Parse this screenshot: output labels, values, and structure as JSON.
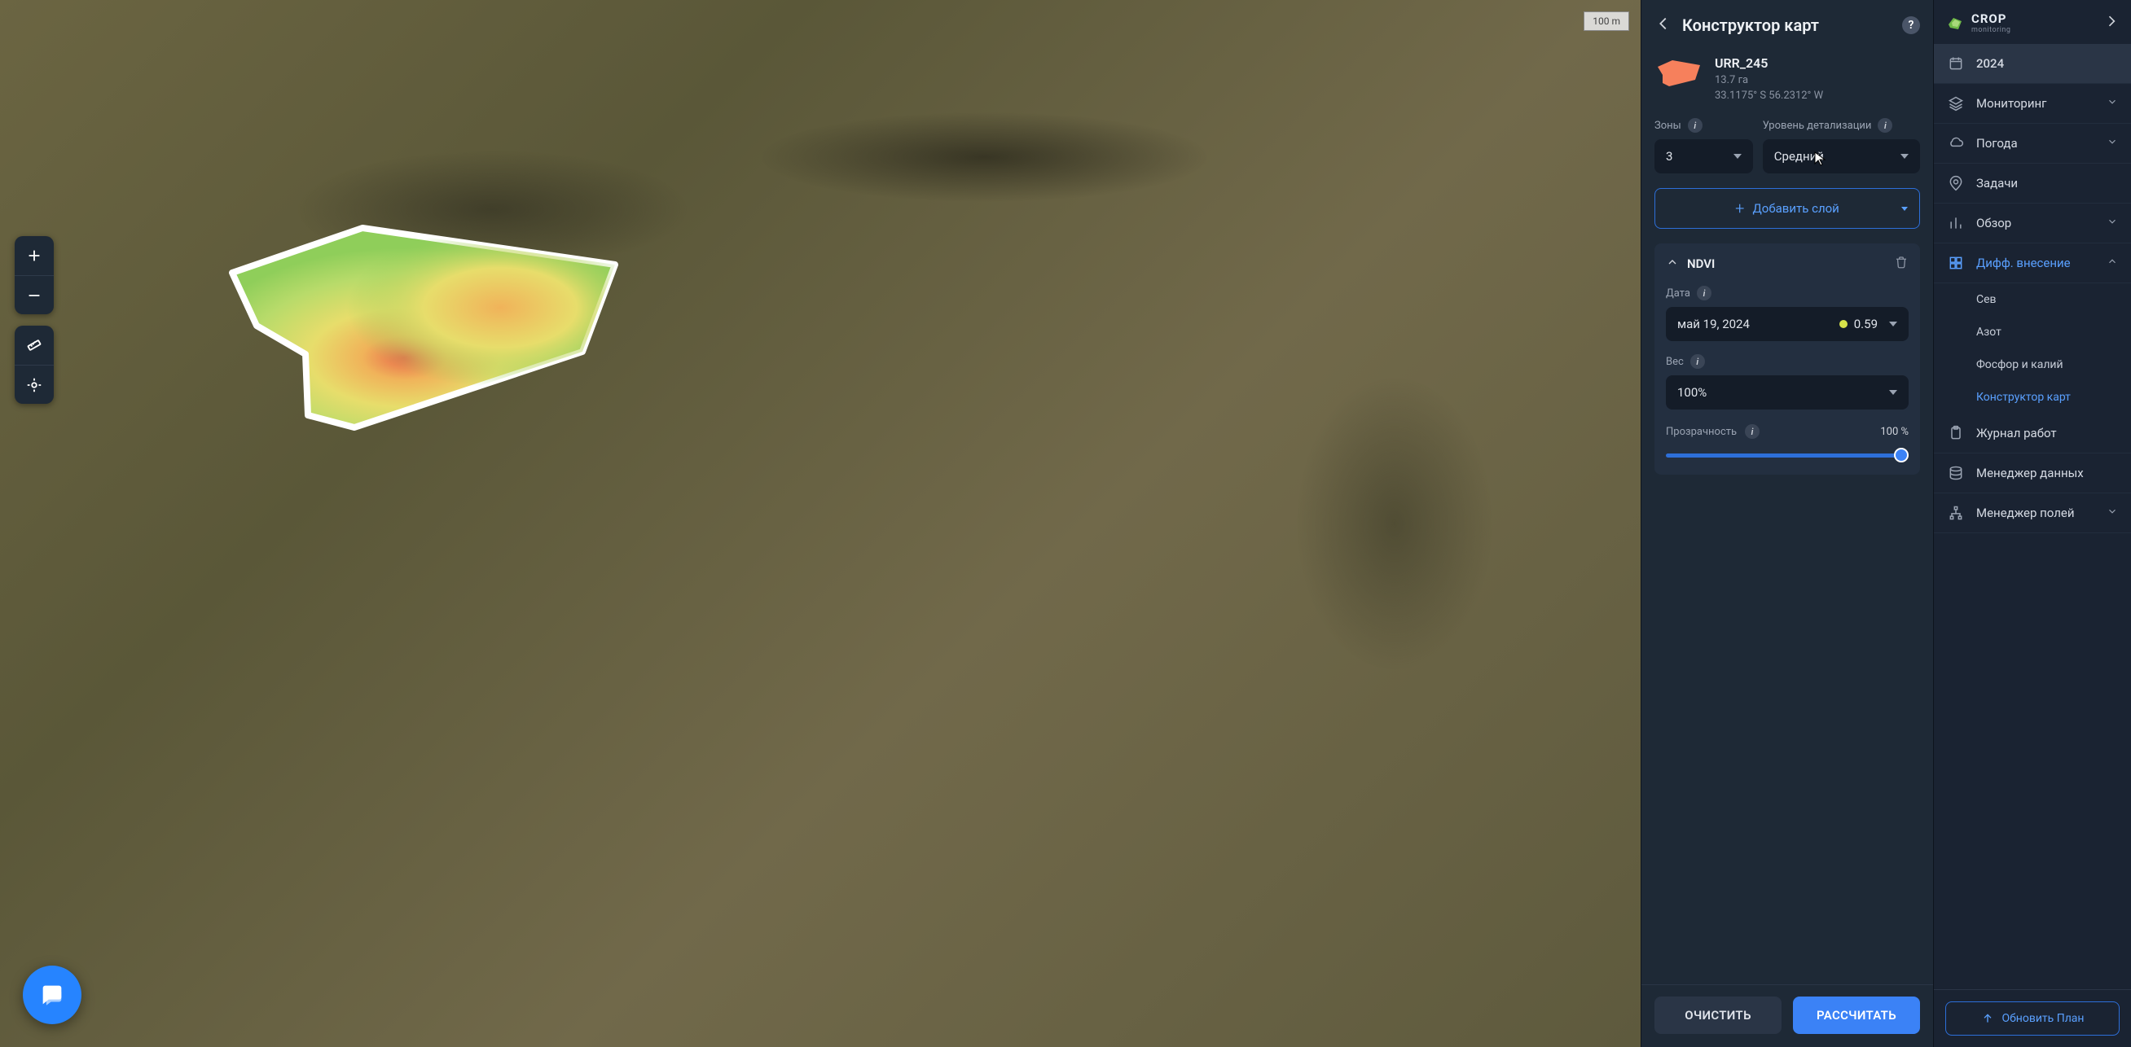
{
  "map": {
    "scale_label": "100 m",
    "heatmap_colors": {
      "low": "#8fce5a",
      "mid": "#e7dd6b",
      "high": "#f0b35a",
      "peak": "#e86b4a",
      "border": "#ffffff"
    }
  },
  "panel": {
    "title": "Конструктор карт",
    "field": {
      "name": "URR_245",
      "area": "13.7 га",
      "coords": "33.1175° S 56.2312° W",
      "thumb_color": "#f6805c"
    },
    "zones": {
      "label": "Зоны",
      "value": "3"
    },
    "detail": {
      "label": "Уровень детализации",
      "value": "Средний"
    },
    "add_layer": "Добавить слой",
    "layer": {
      "name": "NDVI",
      "date_label": "Дата",
      "date_value": "май 19, 2024",
      "index_value": "0.59",
      "weight_label": "Вес",
      "weight_value": "100%",
      "opacity_label": "Прозрачность",
      "opacity_value": "100 %",
      "opacity_percent": 100
    },
    "footer": {
      "clear": "ОЧИСТИТЬ",
      "calc": "РАССЧИТАТЬ"
    }
  },
  "nav": {
    "brand": {
      "line1": "CROP",
      "line2": "monitoring"
    },
    "year": "2024",
    "items": [
      {
        "key": "monitoring",
        "label": "Мониторинг",
        "icon": "layers",
        "expandable": true
      },
      {
        "key": "weather",
        "label": "Погода",
        "icon": "cloud",
        "expandable": true
      },
      {
        "key": "tasks",
        "label": "Задачи",
        "icon": "pin",
        "expandable": false
      },
      {
        "key": "overview",
        "label": "Обзор",
        "icon": "bars",
        "expandable": true
      },
      {
        "key": "diff",
        "label": "Дифф. внесение",
        "icon": "grid",
        "expandable": true,
        "expanded": true,
        "active": true,
        "children": [
          {
            "key": "sow",
            "label": "Сев"
          },
          {
            "key": "nitrogen",
            "label": "Азот"
          },
          {
            "key": "pk",
            "label": "Фосфор и калий"
          },
          {
            "key": "builder",
            "label": "Конструктор карт",
            "active": true
          }
        ]
      },
      {
        "key": "log",
        "label": "Журнал работ",
        "icon": "clipboard",
        "expandable": false
      },
      {
        "key": "datamgr",
        "label": "Менеджер данных",
        "icon": "database",
        "expandable": false
      },
      {
        "key": "fieldmgr",
        "label": "Менеджер полей",
        "icon": "tree",
        "expandable": true
      }
    ],
    "update_plan": "Обновить План"
  },
  "colors": {
    "accent": "#3b82f6",
    "accent_border": "#2d6fd9",
    "panel_bg": "#1e2936",
    "card_bg": "#232f40",
    "input_bg": "#141c28"
  }
}
